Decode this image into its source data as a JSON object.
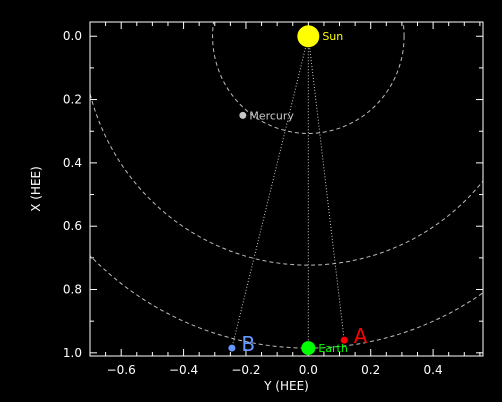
{
  "chart_data": {
    "type": "scatter",
    "title": "",
    "xlabel": "Y (HEE)",
    "ylabel": "X (HEE)",
    "xlim": [
      -0.7,
      0.56
    ],
    "ylim": [
      1.01,
      -0.045
    ],
    "xticks": [
      -0.6,
      -0.4,
      -0.2,
      0.0,
      0.2,
      0.4
    ],
    "xtick_labels": [
      "−0.6",
      "−0.4",
      "−0.2",
      "0.0",
      "0.2",
      "0.4"
    ],
    "yticks": [
      0.0,
      0.2,
      0.4,
      0.6,
      0.8,
      1.0
    ],
    "ytick_labels": [
      "0.0",
      "0.2",
      "0.4",
      "0.6",
      "0.8",
      "1.0"
    ],
    "grid": false,
    "background": "#000000",
    "axis_color": "#ffffff",
    "orbits": [
      {
        "center": [
          0.0,
          0.0
        ],
        "radius": 0.307
      },
      {
        "center": [
          0.0,
          0.0
        ],
        "radius": 0.723
      },
      {
        "center": [
          0.0,
          0.0
        ],
        "radius": 0.985
      }
    ],
    "bodies": [
      {
        "name": "Sun",
        "label": "Sun",
        "x": 0.0,
        "y": 0.0,
        "color": "#ffff00",
        "size": "large",
        "label_color": "#ffff00",
        "label_side": "right"
      },
      {
        "name": "Mercury",
        "label": "Mercury",
        "x": -0.21,
        "y": 0.25,
        "color": "#c8c8c8",
        "size": "small",
        "label_color": "#c8c8c8",
        "label_side": "right"
      },
      {
        "name": "Earth",
        "label": "Earth",
        "x": 0.0,
        "y": 0.985,
        "color": "#00ff00",
        "size": "medium",
        "label_color": "#00ff00",
        "label_side": "right"
      },
      {
        "name": "A",
        "label": "A",
        "x": 0.115,
        "y": 0.96,
        "color": "#ff0000",
        "size": "small",
        "label_color": "#ff0000",
        "label_side": "upper-right"
      },
      {
        "name": "B",
        "label": "B",
        "x": -0.245,
        "y": 0.985,
        "color": "#6699ff",
        "size": "small",
        "label_color": "#6699ff",
        "label_side": "upper-right"
      }
    ],
    "sight_lines": [
      {
        "from": "Sun",
        "to": "A"
      },
      {
        "from": "Sun",
        "to": "B"
      },
      {
        "from": "Sun",
        "to": "Earth"
      }
    ]
  }
}
